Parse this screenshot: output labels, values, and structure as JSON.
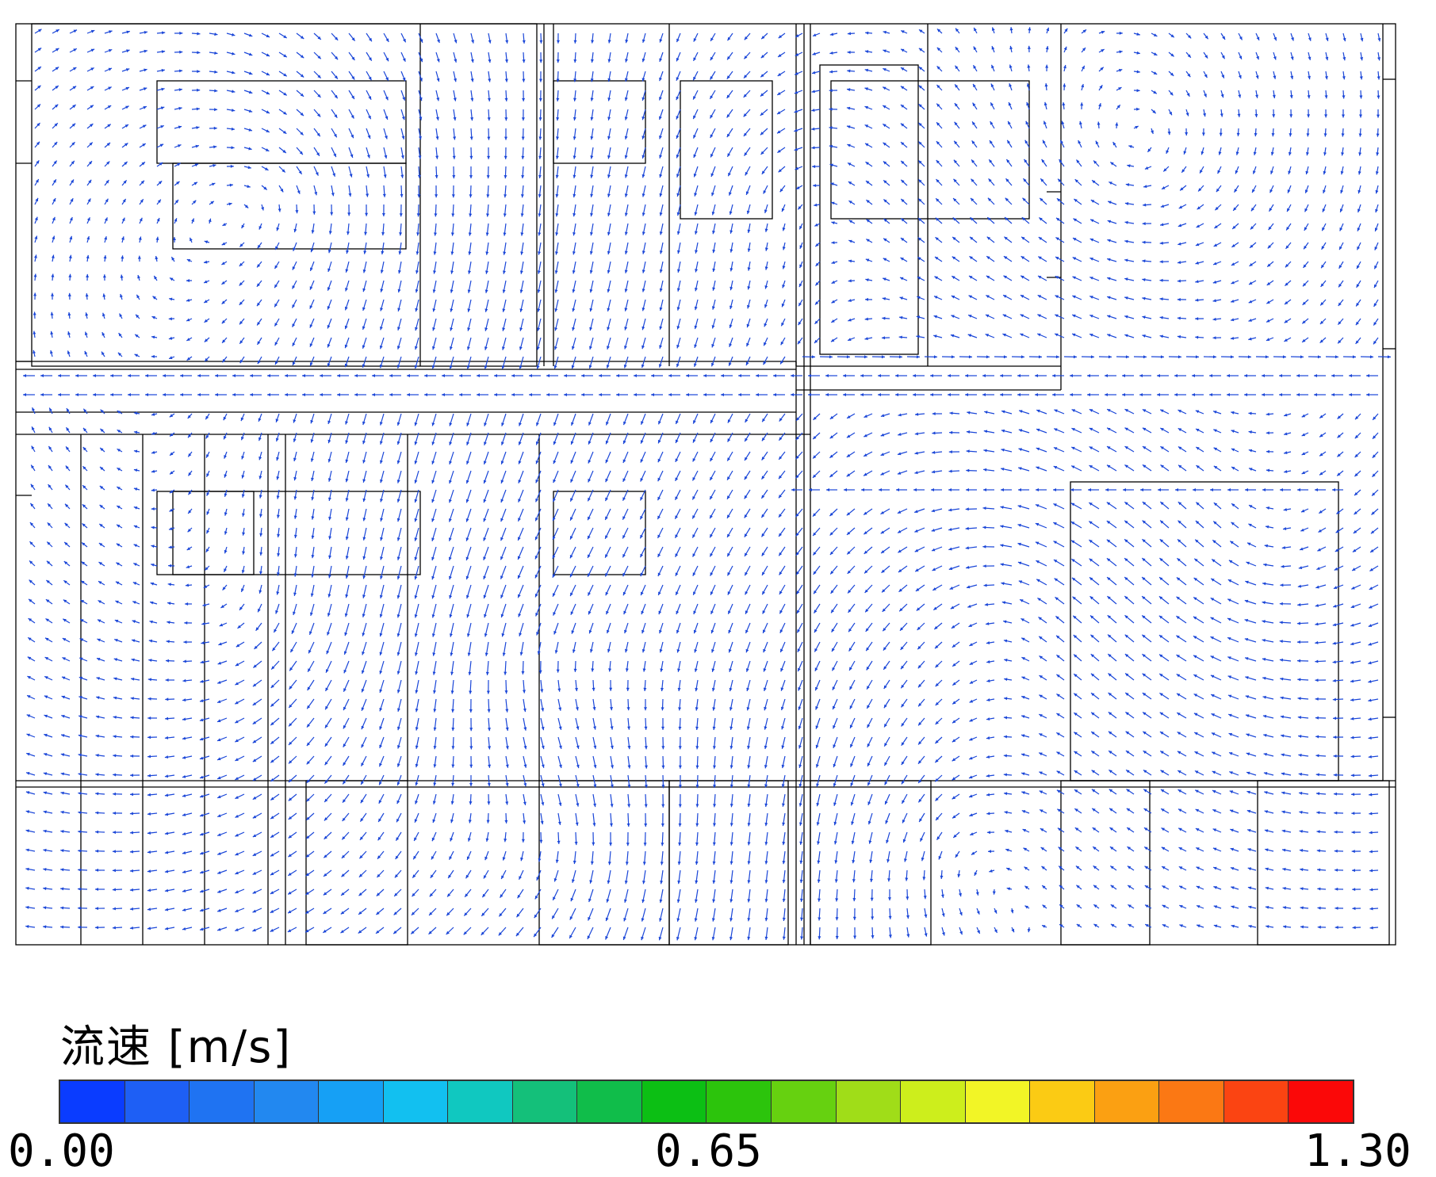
{
  "legend": {
    "title": "流速 [m/s]",
    "ticks": {
      "min": "0.00",
      "mid": "0.65",
      "max": "1.30"
    },
    "colors": [
      "#0a3cff",
      "#1e5ff5",
      "#1f73f2",
      "#2288f0",
      "#16a0f5",
      "#12c0f0",
      "#10c8c0",
      "#14c07a",
      "#10bd4a",
      "#0cbf14",
      "#2cc40c",
      "#66d110",
      "#a0dd18",
      "#cdee1c",
      "#f2f526",
      "#fbcb14",
      "#fba012",
      "#fb7814",
      "#fb4412",
      "#fb0808"
    ]
  },
  "flow_field": {
    "arrow_color": "#1a46d8",
    "line_color": "#000000",
    "arrow_scale_max": 1.3
  }
}
